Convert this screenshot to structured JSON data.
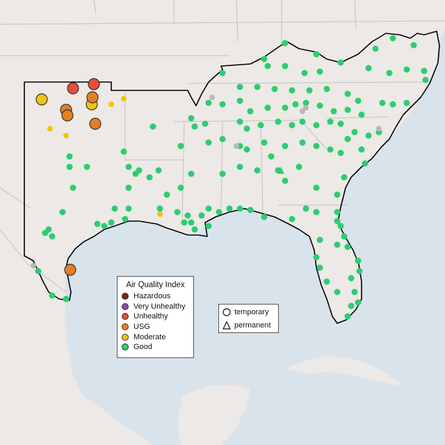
{
  "legend": {
    "title": "Air Quality Index",
    "items": [
      {
        "label": "Hazardous",
        "color": "#7e2318"
      },
      {
        "label": "Very Unhealthy",
        "color": "#8e44ad"
      },
      {
        "label": "Unhealthy",
        "color": "#e74c3c"
      },
      {
        "label": "USG",
        "color": "#e67e22"
      },
      {
        "label": "Moderate",
        "color": "#f1c40f"
      },
      {
        "label": "Good",
        "color": "#2ecc71"
      }
    ]
  },
  "shape_legend": {
    "items": [
      {
        "label": "temporary",
        "shape": "circle"
      },
      {
        "label": "permanent",
        "shape": "triangle"
      }
    ]
  },
  "colors": {
    "water": "#d9e3ec",
    "land": "#ece9e6",
    "boundary": "#c4c2c2",
    "region_outline": "#000000",
    "no_data_marker": "#b8b8b8"
  }
}
